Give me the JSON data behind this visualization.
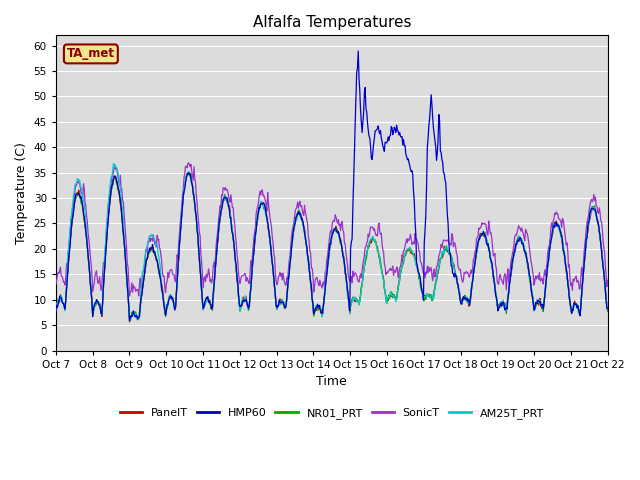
{
  "title": "Alfalfa Temperatures",
  "xlabel": "Time",
  "ylabel": "Temperature (C)",
  "ylim": [
    0,
    62
  ],
  "yticks": [
    0,
    5,
    10,
    15,
    20,
    25,
    30,
    35,
    40,
    45,
    50,
    55,
    60
  ],
  "background_color": "#dcdcdc",
  "figure_color": "#ffffff",
  "annotation_text": "TA_met",
  "annotation_color": "#8B0000",
  "annotation_bg": "#f0e68c",
  "series": {
    "PanelT": {
      "color": "#cc0000",
      "lw": 1.0
    },
    "HMP60": {
      "color": "#0000cc",
      "lw": 1.0
    },
    "NR01_PRT": {
      "color": "#00aa00",
      "lw": 1.0
    },
    "SonicT": {
      "color": "#9933cc",
      "lw": 1.0
    },
    "AM25T_PRT": {
      "color": "#00cccc",
      "lw": 1.0
    }
  },
  "x_tick_labels": [
    "Oct 7",
    "Oct 8",
    "Oct 9",
    "Oct 10",
    "Oct 11",
    "Oct 12",
    "Oct 13",
    "Oct 14",
    "Oct 15",
    "Oct 16",
    "Oct 17",
    "Oct 18",
    "Oct 19",
    "Oct 20",
    "Oct 21",
    "Oct 22"
  ],
  "legend_labels": [
    "PanelT",
    "HMP60",
    "NR01_PRT",
    "SonicT",
    "AM25T_PRT"
  ],
  "legend_colors": [
    "#cc0000",
    "#0000cc",
    "#00aa00",
    "#9933cc",
    "#00cccc"
  ],
  "n_days": 15,
  "pts_per_day": 48
}
